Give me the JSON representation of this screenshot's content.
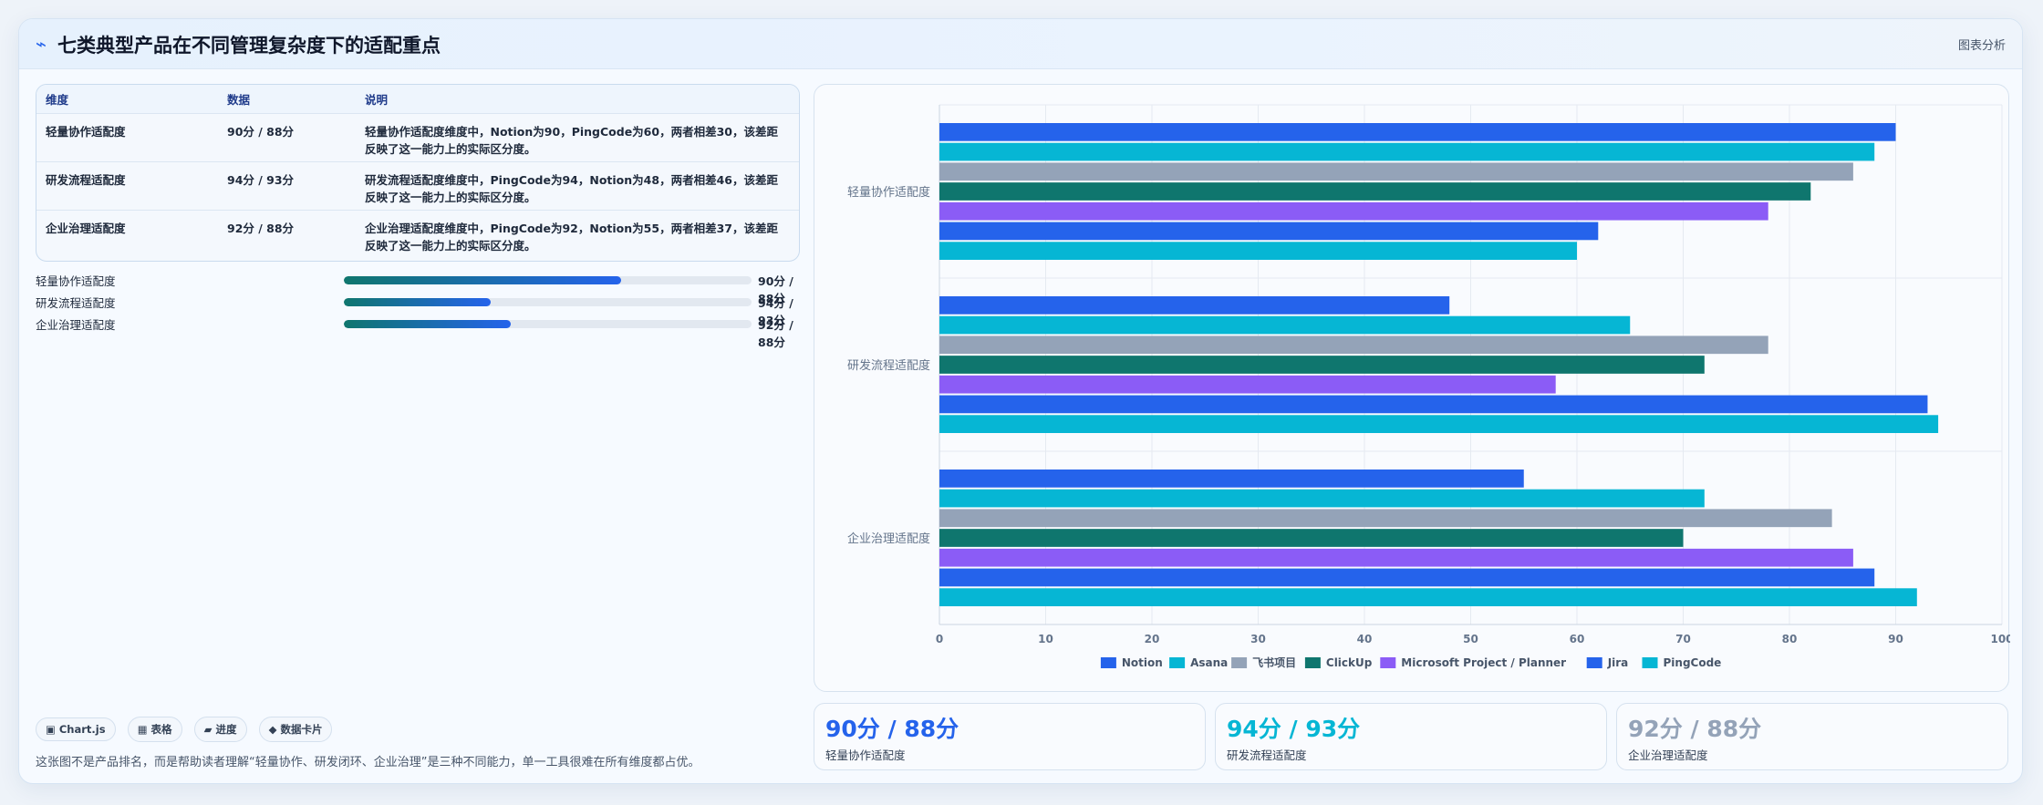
{
  "header": {
    "icon": "⌁",
    "title": "七类典型产品在不同管理复杂度下的适配重点",
    "link": "图表分析"
  },
  "table": {
    "headers": [
      "维度",
      "数据",
      "说明"
    ],
    "rows": [
      {
        "dim": "轻量协作适配度",
        "data": "90分 / 88分",
        "desc": "轻量协作适配度维度中，Notion为90，PingCode为60，两者相差30，该差距反映了这一能力上的实际区分度。"
      },
      {
        "dim": "研发流程适配度",
        "data": "94分 / 93分",
        "desc": "研发流程适配度维度中，PingCode为94，Notion为48，两者相差46，该差距反映了这一能力上的实际区分度。"
      },
      {
        "dim": "企业治理适配度",
        "data": "92分 / 88分",
        "desc": "企业治理适配度维度中，PingCode为92，Notion为55，两者相差37，该差距反映了这一能力上的实际区分度。"
      }
    ]
  },
  "progress": [
    {
      "label": "轻量协作适配度",
      "value": "90分 / 88分",
      "fill": 0.68
    },
    {
      "label": "研发流程适配度",
      "value": "94分 / 93分",
      "fill": 0.36
    },
    {
      "label": "企业治理适配度",
      "value": "92分 / 88分",
      "fill": 0.41
    }
  ],
  "chips": [
    "▣ Chart.js",
    "▦ 表格",
    "▰ 进度",
    "◆ 数据卡片"
  ],
  "footnote": "这张图不是产品排名，而是帮助读者理解“轻量协作、研发闭环、企业治理”是三种不同能力，单一工具很难在所有维度都占优。",
  "stats": [
    {
      "value": "90分 / 88分",
      "label": "轻量协作适配度",
      "color": "#2563eb"
    },
    {
      "value": "94分 / 93分",
      "label": "研发流程适配度",
      "color": "#06b6d4"
    },
    {
      "value": "92分 / 88分",
      "label": "企业治理适配度",
      "color": "#94a3b8"
    }
  ],
  "chart_data": {
    "type": "bar",
    "orientation": "horizontal",
    "categories": [
      "轻量协作适配度",
      "研发流程适配度",
      "企业治理适配度"
    ],
    "series": [
      {
        "name": "Notion",
        "color": "#2563eb",
        "values": [
          90,
          48,
          55
        ]
      },
      {
        "name": "Asana",
        "color": "#06b6d4",
        "values": [
          88,
          65,
          72
        ]
      },
      {
        "name": "飞书项目",
        "color": "#94a3b8",
        "values": [
          86,
          78,
          84
        ]
      },
      {
        "name": "ClickUp",
        "color": "#0f766e",
        "values": [
          82,
          72,
          70
        ]
      },
      {
        "name": "Microsoft Project / Planner",
        "color": "#8b5cf6",
        "values": [
          78,
          58,
          86
        ]
      },
      {
        "name": "Jira",
        "color": "#2563eb",
        "values": [
          62,
          93,
          88
        ]
      },
      {
        "name": "PingCode",
        "color": "#06b6d4",
        "values": [
          60,
          94,
          92
        ]
      }
    ],
    "xlim": [
      0,
      100
    ],
    "xticks": [
      0,
      10,
      20,
      30,
      40,
      50,
      60,
      70,
      80,
      90,
      100
    ],
    "grid": true,
    "legend": "bottom"
  }
}
